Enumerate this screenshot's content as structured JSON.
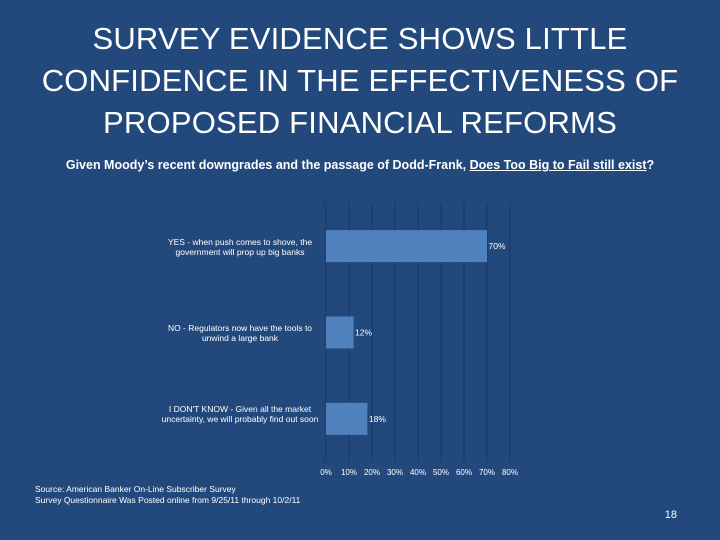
{
  "slide": {
    "title_lines": [
      "SURVEY EVIDENCE SHOWS LITTLE",
      "CONFIDENCE IN THE EFFECTIVENESS OF",
      "PROPOSED FINANCIAL REFORMS"
    ],
    "subtitle_prefix": "Given Moody’s recent downgrades and the passage of Dodd-Frank, ",
    "subtitle_underlined": "Does Too Big to Fail still exist",
    "subtitle_suffix": "?",
    "source_line1": "Source: American Banker On-Line Subscriber Survey",
    "source_line2": "Survey Questionnaire Was Posted online from 9/25/11 through 10/2/11",
    "page_number": "18"
  },
  "chart_data": {
    "type": "bar",
    "orientation": "horizontal",
    "categories": [
      "YES - when push comes to shove, the government will prop up big banks",
      "NO - Regulators now have the tools to unwind a large bank",
      "I DON'T KNOW - Given all the market uncertainty, we will probably find out soon"
    ],
    "values": [
      70,
      12,
      18
    ],
    "data_labels": [
      "70%",
      "12%",
      "18%"
    ],
    "x_ticks": [
      "0%",
      "10%",
      "20%",
      "30%",
      "40%",
      "50%",
      "60%",
      "70%",
      "80%"
    ],
    "xlim": [
      0,
      80
    ],
    "grid": true,
    "bar_color": "#4f81bd",
    "grid_color": "#1c3d6b"
  }
}
